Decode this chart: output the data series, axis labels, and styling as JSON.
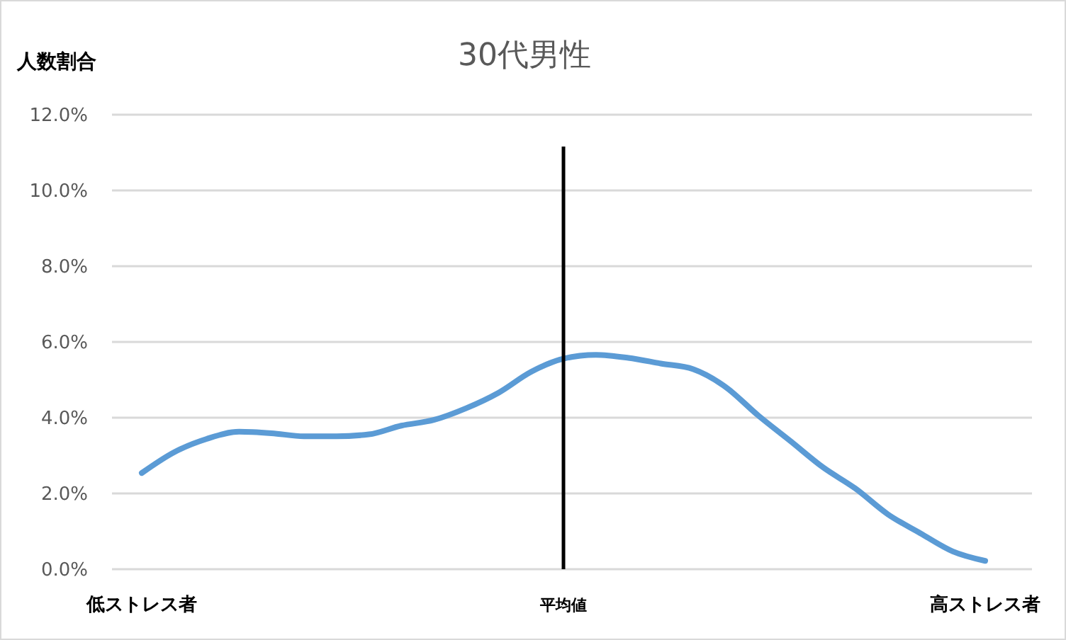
{
  "chart_data": {
    "type": "line",
    "title": "30代男性",
    "ylabel": "人数割合",
    "categories": [
      "低ストレス者",
      null,
      null,
      null,
      null,
      null,
      null,
      null,
      null,
      null,
      null,
      null,
      null,
      "平均値",
      null,
      null,
      null,
      null,
      null,
      null,
      null,
      null,
      null,
      null,
      null,
      null,
      "高ストレス者"
    ],
    "series": [
      {
        "color": "#5b9bd5",
        "values": [
          2.54,
          3.09,
          3.44,
          3.63,
          3.59,
          3.51,
          3.51,
          3.56,
          3.79,
          3.94,
          4.25,
          4.66,
          5.21,
          5.56,
          5.66,
          5.58,
          5.43,
          5.28,
          4.81,
          4.06,
          3.38,
          2.69,
          2.13,
          1.45,
          0.95,
          0.47,
          0.22
        ]
      }
    ],
    "ylim": [
      0,
      12
    ],
    "yticks": [
      {
        "value": 0,
        "label": "0.0%"
      },
      {
        "value": 2,
        "label": "2.0%"
      },
      {
        "value": 4,
        "label": "4.0%"
      },
      {
        "value": 6,
        "label": "6.0%"
      },
      {
        "value": 8,
        "label": "8.0%"
      },
      {
        "value": 10,
        "label": "10.0%"
      },
      {
        "value": 12,
        "label": "12.0%"
      }
    ],
    "grid": "y",
    "marker": "none",
    "line_style": "solid",
    "ref_lines": [
      {
        "axis": "x",
        "value": "平均値",
        "color": "#000000"
      }
    ]
  }
}
